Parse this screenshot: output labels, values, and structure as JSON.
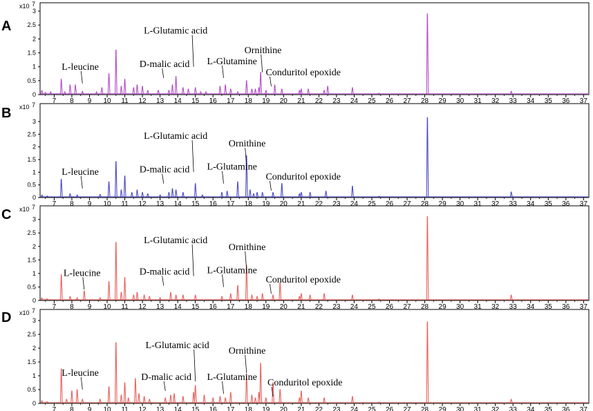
{
  "chart_data": [
    {
      "panel": "A",
      "type": "line",
      "color": "#b44cc8",
      "xlim": [
        6.2,
        37.3
      ],
      "ylim": [
        0,
        3.2
      ],
      "scale_label": "x10",
      "scale_exp": "7",
      "xticks": [
        "7",
        "8",
        "9",
        "10",
        "11",
        "12",
        "13",
        "14",
        "15",
        "16",
        "17",
        "18",
        "19",
        "20",
        "21",
        "22",
        "23",
        "24",
        "25",
        "26",
        "27",
        "28",
        "29",
        "30",
        "31",
        "32",
        "33",
        "34",
        "35",
        "36",
        "37"
      ],
      "yticks": [
        "0",
        "0.5",
        "1",
        "1.5",
        "2",
        "2.5",
        "3"
      ],
      "peaks": [
        [
          6.3,
          0.15
        ],
        [
          6.5,
          0.08
        ],
        [
          6.8,
          0.1
        ],
        [
          7.4,
          0.55
        ],
        [
          7.6,
          0.1
        ],
        [
          7.9,
          0.35
        ],
        [
          8.2,
          0.35
        ],
        [
          8.6,
          0.12
        ],
        [
          9.4,
          0.1
        ],
        [
          9.7,
          0.25
        ],
        [
          10.1,
          0.75
        ],
        [
          10.5,
          1.6
        ],
        [
          10.8,
          0.3
        ],
        [
          11.0,
          0.55
        ],
        [
          11.5,
          0.25
        ],
        [
          11.7,
          0.35
        ],
        [
          12.0,
          0.3
        ],
        [
          12.3,
          0.15
        ],
        [
          12.9,
          0.15
        ],
        [
          13.5,
          0.15
        ],
        [
          13.7,
          0.35
        ],
        [
          13.9,
          0.65
        ],
        [
          14.3,
          0.25
        ],
        [
          14.6,
          0.2
        ],
        [
          15.0,
          0.25
        ],
        [
          15.3,
          0.1
        ],
        [
          15.6,
          0.1
        ],
        [
          16.4,
          0.3
        ],
        [
          16.7,
          0.35
        ],
        [
          17.0,
          0.2
        ],
        [
          17.4,
          0.1
        ],
        [
          17.9,
          0.5
        ],
        [
          18.2,
          0.2
        ],
        [
          18.4,
          0.2
        ],
        [
          18.6,
          0.25
        ],
        [
          18.7,
          0.8
        ],
        [
          19.0,
          0.15
        ],
        [
          19.5,
          0.35
        ],
        [
          19.9,
          0.2
        ],
        [
          20.9,
          0.15
        ],
        [
          21.0,
          0.2
        ],
        [
          21.4,
          0.2
        ],
        [
          22.3,
          0.15
        ],
        [
          22.5,
          0.3
        ],
        [
          23.9,
          0.25
        ],
        [
          25.4,
          0.05
        ],
        [
          28.15,
          2.9
        ],
        [
          32.9,
          0.12
        ]
      ],
      "annotations": [
        {
          "text": "L-leucine",
          "x": 8.6,
          "y": 0.35
        },
        {
          "text": "D-malic acid",
          "x": 13.2,
          "y": 0.55
        },
        {
          "text": "L-Glutamic acid",
          "x": 14.9,
          "y": 0.95
        },
        {
          "text": "L-Glutamine",
          "x": 16.6,
          "y": 0.55
        },
        {
          "text": "Ornithine",
          "x": 18.8,
          "y": 0.75
        },
        {
          "text": "Conduritol epoxide",
          "x": 19.3,
          "y": 0.25
        }
      ]
    },
    {
      "panel": "B",
      "type": "line",
      "color": "#4a4ac8",
      "xlim": [
        6.2,
        37.3
      ],
      "ylim": [
        0,
        3.6
      ],
      "scale_label": "x10",
      "scale_exp": "7",
      "xticks": [
        "7",
        "8",
        "9",
        "10",
        "11",
        "12",
        "13",
        "14",
        "15",
        "16",
        "17",
        "18",
        "19",
        "20",
        "21",
        "22",
        "23",
        "24",
        "25",
        "26",
        "27",
        "28",
        "29",
        "30",
        "31",
        "32",
        "33",
        "34",
        "35",
        "36",
        "37"
      ],
      "yticks": [
        "0",
        "0.5",
        "1",
        "1.5",
        "2",
        "2.5",
        "3"
      ],
      "peaks": [
        [
          6.3,
          0.1
        ],
        [
          6.6,
          0.06
        ],
        [
          7.4,
          0.72
        ],
        [
          7.9,
          0.15
        ],
        [
          8.3,
          0.1
        ],
        [
          9.6,
          0.12
        ],
        [
          10.1,
          0.62
        ],
        [
          10.5,
          1.42
        ],
        [
          10.8,
          0.3
        ],
        [
          11.0,
          0.85
        ],
        [
          11.4,
          0.2
        ],
        [
          11.7,
          0.3
        ],
        [
          12.0,
          0.2
        ],
        [
          12.3,
          0.15
        ],
        [
          13.0,
          0.1
        ],
        [
          13.5,
          0.2
        ],
        [
          13.7,
          0.35
        ],
        [
          13.9,
          0.3
        ],
        [
          14.3,
          0.2
        ],
        [
          15.0,
          0.55
        ],
        [
          15.4,
          0.1
        ],
        [
          16.5,
          0.2
        ],
        [
          16.8,
          0.25
        ],
        [
          17.4,
          0.62
        ],
        [
          17.9,
          1.65
        ],
        [
          18.1,
          0.3
        ],
        [
          18.3,
          0.15
        ],
        [
          18.5,
          0.2
        ],
        [
          18.8,
          0.2
        ],
        [
          19.4,
          0.2
        ],
        [
          19.9,
          0.55
        ],
        [
          20.9,
          0.15
        ],
        [
          21.0,
          0.2
        ],
        [
          21.5,
          0.2
        ],
        [
          22.4,
          0.25
        ],
        [
          23.9,
          0.45
        ],
        [
          25.4,
          0.05
        ],
        [
          28.15,
          3.15
        ],
        [
          32.9,
          0.22
        ]
      ],
      "annotations": [
        {
          "text": "L-leucine",
          "x": 8.6,
          "y": 0.3
        },
        {
          "text": "D-malic acid",
          "x": 13.2,
          "y": 0.5
        },
        {
          "text": "L-Glutamic acid",
          "x": 14.9,
          "y": 0.95
        },
        {
          "text": "L-Glutamine",
          "x": 16.6,
          "y": 0.5
        },
        {
          "text": "Ornithine",
          "x": 17.9,
          "y": 1.2
        },
        {
          "text": "Conduritol epoxide",
          "x": 19.3,
          "y": 0.22
        }
      ]
    },
    {
      "panel": "C",
      "type": "line",
      "color": "#e8605a",
      "xlim": [
        6.2,
        37.3
      ],
      "ylim": [
        0,
        3.4
      ],
      "scale_label": "x10",
      "scale_exp": "7",
      "xticks": [
        "7",
        "8",
        "9",
        "10",
        "11",
        "12",
        "13",
        "14",
        "15",
        "16",
        "17",
        "18",
        "19",
        "20",
        "21",
        "22",
        "23",
        "24",
        "25",
        "26",
        "27",
        "28",
        "29",
        "30",
        "31",
        "32",
        "33",
        "34",
        "35",
        "36",
        "37"
      ],
      "yticks": [
        "0",
        "0.5",
        "1",
        "1.5",
        "2",
        "2.5",
        "3"
      ],
      "peaks": [
        [
          6.3,
          0.1
        ],
        [
          6.6,
          0.06
        ],
        [
          7.4,
          0.95
        ],
        [
          7.9,
          0.15
        ],
        [
          8.3,
          0.1
        ],
        [
          8.7,
          0.35
        ],
        [
          9.6,
          0.1
        ],
        [
          10.1,
          0.7
        ],
        [
          10.5,
          2.15
        ],
        [
          10.8,
          0.3
        ],
        [
          11.0,
          0.85
        ],
        [
          11.5,
          0.2
        ],
        [
          11.7,
          0.3
        ],
        [
          12.1,
          0.2
        ],
        [
          12.4,
          0.15
        ],
        [
          13.0,
          0.1
        ],
        [
          13.6,
          0.3
        ],
        [
          13.9,
          0.2
        ],
        [
          14.3,
          0.2
        ],
        [
          15.0,
          0.2
        ],
        [
          16.5,
          0.15
        ],
        [
          17.0,
          0.25
        ],
        [
          17.4,
          0.55
        ],
        [
          17.9,
          1.3
        ],
        [
          18.2,
          0.2
        ],
        [
          18.5,
          0.15
        ],
        [
          18.8,
          0.25
        ],
        [
          19.4,
          0.2
        ],
        [
          19.8,
          0.65
        ],
        [
          20.9,
          0.15
        ],
        [
          21.0,
          0.25
        ],
        [
          21.5,
          0.2
        ],
        [
          22.3,
          0.25
        ],
        [
          23.9,
          0.2
        ],
        [
          25.4,
          0.05
        ],
        [
          28.15,
          3.1
        ],
        [
          32.9,
          0.2
        ]
      ],
      "annotations": [
        {
          "text": "L-leucine",
          "x": 8.7,
          "y": 0.35
        },
        {
          "text": "D-malic acid",
          "x": 13.2,
          "y": 0.5
        },
        {
          "text": "L-Glutamic acid",
          "x": 14.9,
          "y": 0.85
        },
        {
          "text": "L-Glutamine",
          "x": 16.6,
          "y": 0.45
        },
        {
          "text": "Ornithine",
          "x": 17.9,
          "y": 1.1
        },
        {
          "text": "Conduritol epoxide",
          "x": 19.3,
          "y": 0.2
        }
      ]
    },
    {
      "panel": "D",
      "type": "line",
      "color": "#e8605a",
      "xlim": [
        6.2,
        37.3
      ],
      "ylim": [
        0,
        3.3
      ],
      "scale_label": "x10",
      "scale_exp": "7",
      "xticks": [
        "7",
        "8",
        "9",
        "10",
        "11",
        "12",
        "13",
        "14",
        "15",
        "16",
        "17",
        "18",
        "19",
        "20",
        "21",
        "22",
        "23",
        "24",
        "25",
        "26",
        "27",
        "28",
        "29",
        "30",
        "31",
        "32",
        "33",
        "34",
        "35",
        "36",
        "37"
      ],
      "yticks": [
        "0",
        "0.5",
        "1",
        "1.5",
        "2",
        "2.5",
        "3"
      ],
      "peaks": [
        [
          6.3,
          0.1
        ],
        [
          6.6,
          0.06
        ],
        [
          7.4,
          1.25
        ],
        [
          7.7,
          0.15
        ],
        [
          8.0,
          0.45
        ],
        [
          8.3,
          0.5
        ],
        [
          8.6,
          0.15
        ],
        [
          9.6,
          0.15
        ],
        [
          10.1,
          0.6
        ],
        [
          10.5,
          2.2
        ],
        [
          10.8,
          0.3
        ],
        [
          11.0,
          0.75
        ],
        [
          11.2,
          0.2
        ],
        [
          11.6,
          0.9
        ],
        [
          11.8,
          0.35
        ],
        [
          12.1,
          0.25
        ],
        [
          12.4,
          0.15
        ],
        [
          13.3,
          0.2
        ],
        [
          13.6,
          0.3
        ],
        [
          13.8,
          0.35
        ],
        [
          14.3,
          0.25
        ],
        [
          14.9,
          0.4
        ],
        [
          15.0,
          0.65
        ],
        [
          15.5,
          0.3
        ],
        [
          16.0,
          0.2
        ],
        [
          16.4,
          0.25
        ],
        [
          16.7,
          0.2
        ],
        [
          17.0,
          0.4
        ],
        [
          17.9,
          1.05
        ],
        [
          18.2,
          0.3
        ],
        [
          18.4,
          0.2
        ],
        [
          18.6,
          0.4
        ],
        [
          18.7,
          1.45
        ],
        [
          19.0,
          0.2
        ],
        [
          19.4,
          0.75
        ],
        [
          19.8,
          0.5
        ],
        [
          20.9,
          0.2
        ],
        [
          21.0,
          0.45
        ],
        [
          21.4,
          0.2
        ],
        [
          22.3,
          0.2
        ],
        [
          23.9,
          0.25
        ],
        [
          25.4,
          0.05
        ],
        [
          28.15,
          2.95
        ],
        [
          32.9,
          0.15
        ]
      ],
      "annotations": [
        {
          "text": "L-leucine",
          "x": 8.6,
          "y": 0.45
        },
        {
          "text": "D-malic acid",
          "x": 13.3,
          "y": 0.4
        },
        {
          "text": "L-Glutamic acid",
          "x": 15.0,
          "y": 0.75
        },
        {
          "text": "L-Glutamine",
          "x": 16.6,
          "y": 0.3
        },
        {
          "text": "Ornithine",
          "x": 17.9,
          "y": 1.05
        },
        {
          "text": "Conduritol epoxide",
          "x": 19.4,
          "y": 0.2
        }
      ]
    }
  ]
}
